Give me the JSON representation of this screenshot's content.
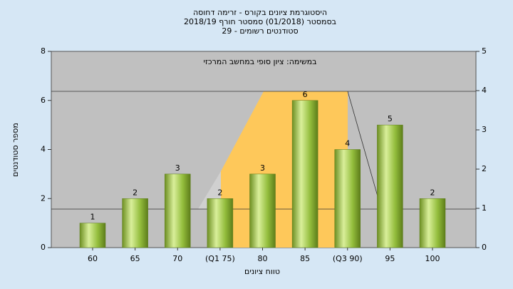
{
  "chart_data": {
    "type": "bar",
    "title": [
      "היסטוגרמת ציונים בקורס - זרימה דחוסה",
      "בסמסטר (01/2018) סמסטר חורף 2018/19",
      "סטודנטים רשומים - 29"
    ],
    "annotation": "במשימה: ציון סופי במחשב המרכזי",
    "x_label": "טווח ציונים",
    "y_label": "מספר סטודנטים",
    "categories": [
      "60",
      "65",
      "70",
      "(Q1 75)",
      "80",
      "85",
      "(Q3 90)",
      "95",
      "100"
    ],
    "values": [
      1,
      2,
      3,
      2,
      3,
      6,
      4,
      5,
      2
    ],
    "color": "#8fb83a",
    "ylim": [
      0,
      8
    ],
    "yticks": [
      0,
      2,
      4,
      6,
      8
    ],
    "y2lim": [
      0,
      5
    ],
    "y2ticks": [
      0,
      1,
      2,
      3,
      4,
      5
    ]
  }
}
